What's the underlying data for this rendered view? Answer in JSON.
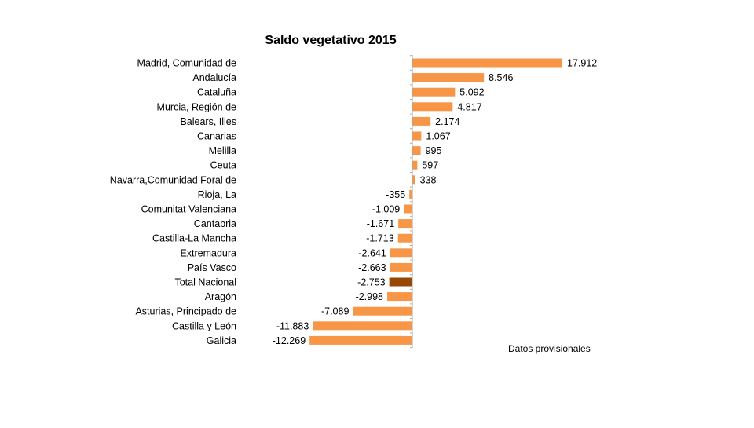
{
  "chart_data": {
    "type": "bar",
    "orientation": "horizontal",
    "title": "Saldo vegetativo 2015",
    "note": "Datos provisionales",
    "xlabel": "",
    "ylabel": "",
    "grid": false,
    "legend": "none",
    "xlim": [
      -13000,
      18500
    ],
    "colors": {
      "bar": "#f79646",
      "highlight": "#974706"
    },
    "highlight_category": "Total Nacional",
    "categories": [
      "Madrid, Comunidad de",
      "Andalucía",
      "Cataluña",
      "Murcia, Región de",
      "Balears, Illes",
      "Canarias",
      "Melilla",
      "Ceuta",
      "Navarra,Comunidad Foral de",
      "Rioja, La",
      "Comunitat Valenciana",
      "Cantabria",
      "Castilla-La Mancha",
      "Extremadura",
      "País Vasco",
      "Total Nacional",
      "Aragón",
      "Asturias, Principado de",
      "Castilla y León",
      "Galicia"
    ],
    "values": [
      17912,
      8546,
      5092,
      4817,
      2174,
      1067,
      995,
      597,
      338,
      -355,
      -1009,
      -1671,
      -1713,
      -2641,
      -2663,
      -2753,
      -2998,
      -7089,
      -11883,
      -12269
    ],
    "value_labels": [
      "17.912",
      "8.546",
      "5.092",
      "4.817",
      "2.174",
      "1.067",
      "995",
      "597",
      "338",
      "-355",
      "-1.009",
      "-1.671",
      "-1.713",
      "-2.641",
      "-2.663",
      "-2.753",
      "-2.998",
      "-7.089",
      "-11.883",
      "-12.269"
    ]
  }
}
